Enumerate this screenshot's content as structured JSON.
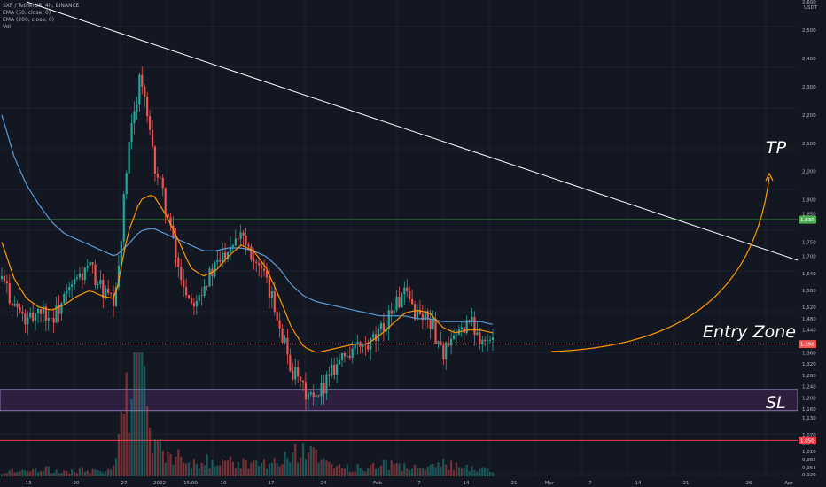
{
  "header": {
    "symbol_line": "SXP / TetherUS, 4h, BINANCE",
    "ema50_line": "EMA (50, close, 0)",
    "ema200_line": "EMA (200, close, 0)",
    "vol_line": "Vol"
  },
  "price_axis": {
    "currency": "USDT",
    "ticks": [
      "2,600",
      "2,500",
      "2,400",
      "2,300",
      "2,200",
      "2,100",
      "2,000",
      "1,900",
      "1,850",
      "1,750",
      "1,700",
      "1,640",
      "1,580",
      "1,520",
      "1,480",
      "1,440",
      "1,360",
      "1,320",
      "1,280",
      "1,240",
      "1,200",
      "1,160",
      "1,130",
      "1,070",
      "1,040",
      "1,010",
      "0,982",
      "0,954",
      "0,929"
    ],
    "badges": {
      "tp": "1,830",
      "last": "1,390",
      "sl": "1,050"
    }
  },
  "time_axis": {
    "labels": [
      "13",
      "20",
      "27",
      "2022",
      "15:00",
      "10",
      "17",
      "24",
      "Feb",
      "7",
      "14",
      "21",
      "Mar",
      "7",
      "14",
      "21",
      "26",
      "Apr"
    ]
  },
  "annotations": {
    "tp": "TP",
    "entry": "Entry Zone",
    "sl": "SL"
  },
  "colors": {
    "background": "#131722",
    "up_candle": "#26a69a",
    "down_candle": "#ef5350",
    "ema50": "#ff9800",
    "ema200": "#5b9bd5",
    "tp_line": "#4caf50",
    "sl_line": "#f23645",
    "entry_zone": "#2d1f3d",
    "entry_border": "#9c8fd0",
    "trendline": "#ffffff",
    "arrow": "#ff9800"
  },
  "chart_data": {
    "type": "candlestick",
    "symbol": "SXP / TetherUS, 4h, BINANCE",
    "ylim": [
      0.929,
      2.6
    ],
    "levels": {
      "tp": 1.83,
      "entry_top": 1.23,
      "entry_bottom": 1.155,
      "sl": 1.05,
      "last": 1.39
    },
    "price_path": [
      {
        "t": "Jan 11",
        "p": 1.62
      },
      {
        "t": "Jan 13",
        "p": 1.53
      },
      {
        "t": "Jan 14",
        "p": 1.46
      },
      {
        "t": "Jan 16",
        "p": 1.52
      },
      {
        "t": "Jan 18",
        "p": 1.48
      },
      {
        "t": "Jan 20",
        "p": 1.55
      },
      {
        "t": "Jan 22",
        "p": 1.62
      },
      {
        "t": "Jan 24",
        "p": 1.66
      },
      {
        "t": "Jan 26",
        "p": 1.58
      },
      {
        "t": "Jan 28",
        "p": 1.52
      },
      {
        "t": "Jan 29",
        "p": 2.05
      },
      {
        "t": "Dec 31",
        "p": 2.35
      },
      {
        "t": "Jan 01",
        "p": 2.05
      },
      {
        "t": "Jan 03",
        "p": 1.88
      },
      {
        "t": "Jan 05",
        "p": 1.66
      },
      {
        "t": "Jan 07",
        "p": 1.54
      },
      {
        "t": "Jan 09",
        "p": 1.6
      },
      {
        "t": "Jan 11",
        "p": 1.66
      },
      {
        "t": "Jan 13",
        "p": 1.74
      },
      {
        "t": "Jan 15",
        "p": 1.8
      },
      {
        "t": "Jan 17",
        "p": 1.7
      },
      {
        "t": "Jan 19",
        "p": 1.6
      },
      {
        "t": "Jan 21",
        "p": 1.48
      },
      {
        "t": "Jan 22",
        "p": 1.3
      },
      {
        "t": "Jan 23",
        "p": 1.22
      },
      {
        "t": "Jan 24",
        "p": 1.18
      },
      {
        "t": "Jan 26",
        "p": 1.3
      },
      {
        "t": "Jan 28",
        "p": 1.34
      },
      {
        "t": "Jan 30",
        "p": 1.38
      },
      {
        "t": "Feb 01",
        "p": 1.37
      },
      {
        "t": "Feb 03",
        "p": 1.42
      },
      {
        "t": "Feb 05",
        "p": 1.52
      },
      {
        "t": "Feb 07",
        "p": 1.56
      },
      {
        "t": "Feb 09",
        "p": 1.5
      },
      {
        "t": "Feb 11",
        "p": 1.48
      },
      {
        "t": "Feb 12",
        "p": 1.36
      },
      {
        "t": "Feb 14",
        "p": 1.4
      },
      {
        "t": "Feb 16",
        "p": 1.48
      },
      {
        "t": "Feb 17",
        "p": 1.42
      },
      {
        "t": "Feb 18",
        "p": 1.39
      }
    ],
    "ema50": [
      1.75,
      1.62,
      1.55,
      1.52,
      1.51,
      1.53,
      1.56,
      1.58,
      1.56,
      1.55,
      1.78,
      1.9,
      1.92,
      1.85,
      1.76,
      1.66,
      1.63,
      1.65,
      1.7,
      1.74,
      1.72,
      1.66,
      1.56,
      1.45,
      1.38,
      1.36,
      1.37,
      1.38,
      1.39,
      1.39,
      1.42,
      1.46,
      1.5,
      1.51,
      1.5,
      1.45,
      1.43,
      1.44,
      1.44,
      1.43
    ],
    "ema200": [
      2.2,
      2.05,
      1.95,
      1.88,
      1.82,
      1.78,
      1.76,
      1.74,
      1.72,
      1.7,
      1.74,
      1.79,
      1.8,
      1.78,
      1.76,
      1.74,
      1.72,
      1.72,
      1.73,
      1.73,
      1.72,
      1.7,
      1.66,
      1.6,
      1.56,
      1.54,
      1.53,
      1.52,
      1.51,
      1.5,
      1.49,
      1.49,
      1.49,
      1.48,
      1.48,
      1.47,
      1.47,
      1.47,
      1.47,
      1.46
    ],
    "volume": [
      2,
      3,
      2,
      4,
      3,
      2,
      3,
      3,
      2,
      4,
      38,
      55,
      20,
      12,
      9,
      7,
      8,
      6,
      7,
      6,
      5,
      6,
      8,
      10,
      12,
      9,
      6,
      5,
      4,
      4,
      5,
      6,
      5,
      4,
      4,
      6,
      5,
      4,
      3,
      3
    ]
  }
}
